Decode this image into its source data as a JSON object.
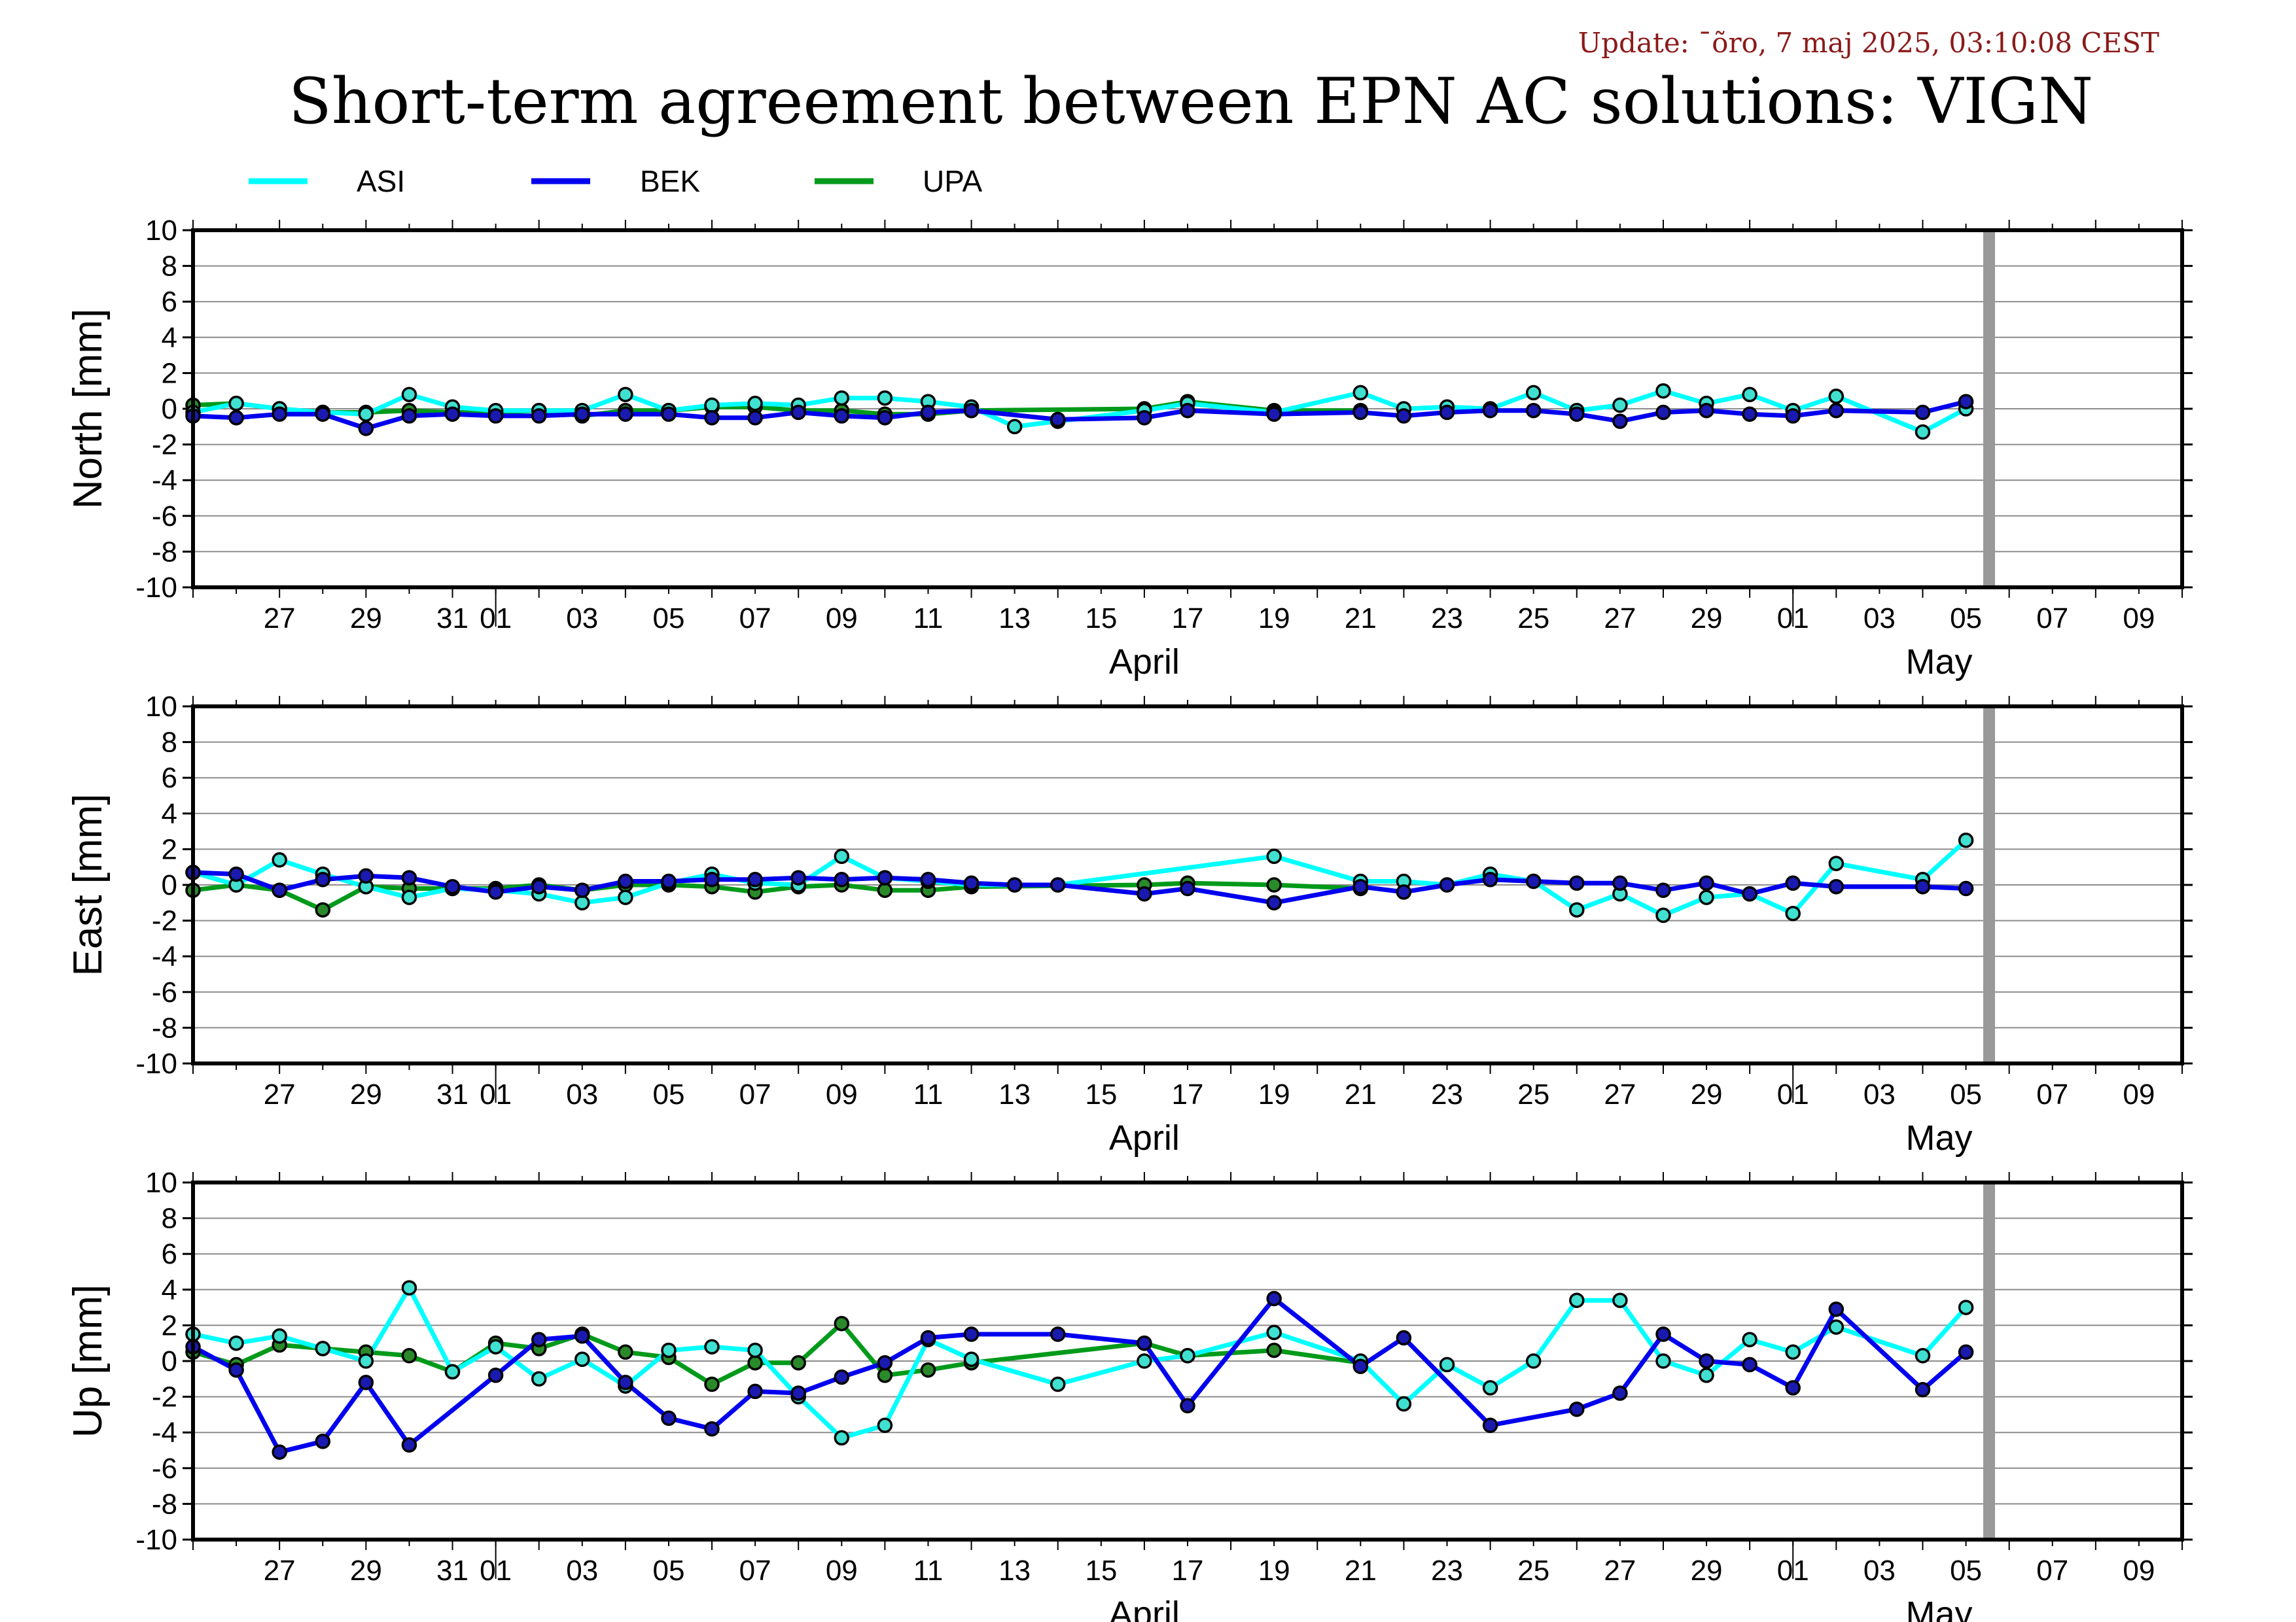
{
  "update": "Update: ¯õro, 7 maj 2025, 03:10:08 CEST",
  "title": "Short-term agreement between EPN AC solutions: VIGN",
  "legend": [
    {
      "name": "ASI",
      "color": "#00ffff"
    },
    {
      "name": "BEK",
      "color": "#0000ee"
    },
    {
      "name": "UPA",
      "color": "#009a1a"
    }
  ],
  "colors": {
    "ASI": "#00ffff",
    "BEK": "#0000ee",
    "UPA": "#009a1a",
    "marker_fill": "#40e0d0",
    "gap_bar": "#999999"
  },
  "x_axis": {
    "day_ticks": [
      "27",
      "29",
      "31",
      "01",
      "03",
      "05",
      "07",
      "09",
      "11",
      "13",
      "15",
      "17",
      "19",
      "21",
      "23",
      "25",
      "27",
      "29",
      "01",
      "03",
      "05",
      "07",
      "09"
    ],
    "month_labels": [
      "April",
      "May"
    ]
  },
  "chart_data": [
    {
      "type": "line",
      "panel": "north",
      "ylabel": "North [mm]",
      "ylim": [
        -10,
        10
      ],
      "yticks": [
        10,
        8,
        6,
        4,
        2,
        0,
        -2,
        -4,
        -6,
        -8,
        -10
      ],
      "xlim": [
        "2025-03-25",
        "2025-05-10"
      ],
      "grid": true,
      "series": [
        {
          "name": "ASI",
          "x": [
            "2025-03-25",
            "2025-03-26",
            "2025-03-27",
            "2025-03-28",
            "2025-03-29",
            "2025-03-30",
            "2025-03-31",
            "2025-04-01",
            "2025-04-02",
            "2025-04-03",
            "2025-04-04",
            "2025-04-05",
            "2025-04-06",
            "2025-04-07",
            "2025-04-08",
            "2025-04-09",
            "2025-04-10",
            "2025-04-11",
            "2025-04-12",
            "2025-04-13",
            "2025-04-14",
            "2025-04-16",
            "2025-04-17",
            "2025-04-19",
            "2025-04-21",
            "2025-04-22",
            "2025-04-23",
            "2025-04-24",
            "2025-04-25",
            "2025-04-26",
            "2025-04-27",
            "2025-04-28",
            "2025-04-29",
            "2025-04-30",
            "2025-05-01",
            "2025-05-02",
            "2025-05-04",
            "2025-05-05"
          ],
          "y": [
            -0.2,
            0.3,
            0.0,
            -0.2,
            -0.3,
            0.8,
            0.1,
            -0.1,
            -0.1,
            -0.1,
            0.8,
            -0.1,
            0.2,
            0.3,
            0.2,
            0.6,
            0.6,
            0.4,
            0.1,
            -1.0,
            -0.7,
            -0.1,
            0.3,
            -0.2,
            0.9,
            0.0,
            0.1,
            0.0,
            0.9,
            -0.1,
            0.2,
            1.0,
            0.3,
            0.8,
            -0.1,
            0.7,
            -1.3,
            0
          ]
        },
        {
          "name": "BEK",
          "x": [
            "2025-03-25",
            "2025-03-26",
            "2025-03-27",
            "2025-03-28",
            "2025-03-29",
            "2025-03-30",
            "2025-03-31",
            "2025-04-01",
            "2025-04-02",
            "2025-04-03",
            "2025-04-04",
            "2025-04-05",
            "2025-04-06",
            "2025-04-07",
            "2025-04-08",
            "2025-04-09",
            "2025-04-10",
            "2025-04-11",
            "2025-04-12",
            "2025-04-14",
            "2025-04-16",
            "2025-04-17",
            "2025-04-19",
            "2025-04-21",
            "2025-04-22",
            "2025-04-23",
            "2025-04-24",
            "2025-04-25",
            "2025-04-26",
            "2025-04-27",
            "2025-04-28",
            "2025-04-29",
            "2025-04-30",
            "2025-05-01",
            "2025-05-02",
            "2025-05-04",
            "2025-05-05"
          ],
          "y": [
            -0.4,
            -0.5,
            -0.3,
            -0.3,
            -1.1,
            -0.4,
            -0.3,
            -0.4,
            -0.4,
            -0.3,
            -0.3,
            -0.3,
            -0.5,
            -0.5,
            -0.2,
            -0.4,
            -0.5,
            -0.2,
            -0.1,
            -0.6,
            -0.5,
            -0.1,
            -0.3,
            -0.2,
            -0.4,
            -0.2,
            -0.1,
            -0.1,
            -0.3,
            -0.7,
            -0.2,
            -0.1,
            -0.3,
            -0.4,
            -0.1,
            -0.2,
            0.4
          ]
        },
        {
          "name": "UPA",
          "x": [
            "2025-03-25",
            "2025-03-26",
            "2025-03-27",
            "2025-03-28",
            "2025-03-29",
            "2025-03-30",
            "2025-03-31",
            "2025-04-01",
            "2025-04-02",
            "2025-04-03",
            "2025-04-04",
            "2025-04-05",
            "2025-04-06",
            "2025-04-07",
            "2025-04-08",
            "2025-04-09",
            "2025-04-10",
            "2025-04-11",
            "2025-04-12",
            "2025-04-16",
            "2025-04-17",
            "2025-04-19",
            "2025-04-21"
          ],
          "y": [
            0.2,
            0.3,
            0.0,
            -0.2,
            -0.2,
            -0.1,
            -0.2,
            -0.2,
            -0.1,
            -0.4,
            -0.1,
            -0.1,
            0.1,
            0.1,
            -0.1,
            -0.1,
            -0.3,
            -0.3,
            -0.1,
            0.0,
            0.4,
            -0.1,
            -0.1
          ]
        }
      ]
    },
    {
      "type": "line",
      "panel": "east",
      "ylabel": "East [mm]",
      "ylim": [
        -10,
        10
      ],
      "yticks": [
        10,
        8,
        6,
        4,
        2,
        0,
        -2,
        -4,
        -6,
        -8,
        -10
      ],
      "xlim": [
        "2025-03-25",
        "2025-05-10"
      ],
      "grid": true,
      "series": [
        {
          "name": "ASI",
          "x": [
            "2025-03-25",
            "2025-03-26",
            "2025-03-27",
            "2025-03-28",
            "2025-03-29",
            "2025-03-30",
            "2025-03-31",
            "2025-04-01",
            "2025-04-02",
            "2025-04-03",
            "2025-04-04",
            "2025-04-05",
            "2025-04-06",
            "2025-04-07",
            "2025-04-08",
            "2025-04-09",
            "2025-04-10",
            "2025-04-11",
            "2025-04-12",
            "2025-04-13",
            "2025-04-14",
            "2025-04-19",
            "2025-04-21",
            "2025-04-22",
            "2025-04-23",
            "2025-04-24",
            "2025-04-25",
            "2025-04-26",
            "2025-04-27",
            "2025-04-28",
            "2025-04-29",
            "2025-04-30",
            "2025-05-01",
            "2025-05-02",
            "2025-05-04",
            "2025-05-05"
          ],
          "y": [
            0.7,
            0.0,
            1.4,
            0.6,
            -0.1,
            -0.7,
            -0.2,
            -0.3,
            -0.5,
            -1.0,
            -0.7,
            0.1,
            0.6,
            0.1,
            0.0,
            1.6,
            0.4,
            0.2,
            0.0,
            0.0,
            0.0,
            1.6,
            0.2,
            0.2,
            0.0,
            0.6,
            0.2,
            -1.4,
            -0.5,
            -1.7,
            -0.7,
            -0.5,
            -1.6,
            1.2,
            0.3,
            2.5
          ]
        },
        {
          "name": "BEK",
          "x": [
            "2025-03-25",
            "2025-03-26",
            "2025-03-27",
            "2025-03-28",
            "2025-03-29",
            "2025-03-30",
            "2025-03-31",
            "2025-04-01",
            "2025-04-02",
            "2025-04-03",
            "2025-04-04",
            "2025-04-05",
            "2025-04-06",
            "2025-04-07",
            "2025-04-08",
            "2025-04-09",
            "2025-04-10",
            "2025-04-11",
            "2025-04-12",
            "2025-04-13",
            "2025-04-14",
            "2025-04-16",
            "2025-04-17",
            "2025-04-19",
            "2025-04-21",
            "2025-04-22",
            "2025-04-23",
            "2025-04-24",
            "2025-04-25",
            "2025-04-26",
            "2025-04-27",
            "2025-04-28",
            "2025-04-29",
            "2025-04-30",
            "2025-05-01",
            "2025-05-02",
            "2025-05-04",
            "2025-05-05"
          ],
          "y": [
            0.7,
            0.6,
            -0.3,
            0.3,
            0.5,
            0.4,
            -0.1,
            -0.4,
            -0.1,
            -0.3,
            0.2,
            0.2,
            0.3,
            0.3,
            0.4,
            0.3,
            0.4,
            0.3,
            0.1,
            0.0,
            0.0,
            -0.5,
            -0.2,
            -1.0,
            -0.1,
            -0.4,
            0.0,
            0.3,
            0.2,
            0.1,
            0.1,
            -0.3,
            0.1,
            -0.5,
            0.1,
            -0.1,
            -0.1,
            -0.2
          ]
        },
        {
          "name": "UPA",
          "x": [
            "2025-03-25",
            "2025-03-26",
            "2025-03-27",
            "2025-03-28",
            "2025-03-29",
            "2025-03-30",
            "2025-03-31",
            "2025-04-01",
            "2025-04-02",
            "2025-04-03",
            "2025-04-04",
            "2025-04-05",
            "2025-04-06",
            "2025-04-07",
            "2025-04-08",
            "2025-04-09",
            "2025-04-10",
            "2025-04-11",
            "2025-04-12",
            "2025-04-16",
            "2025-04-17",
            "2025-04-19",
            "2025-04-21"
          ],
          "y": [
            -0.3,
            0.0,
            -0.3,
            -1.4,
            -0.1,
            -0.2,
            -0.2,
            -0.2,
            0.0,
            -0.3,
            0.0,
            0.0,
            -0.1,
            -0.4,
            -0.1,
            0.0,
            -0.3,
            -0.3,
            -0.1,
            0.0,
            0.1,
            0.0,
            -0.2
          ]
        }
      ]
    },
    {
      "type": "line",
      "panel": "up",
      "ylabel": "Up [mm]",
      "ylim": [
        -10,
        10
      ],
      "yticks": [
        10,
        8,
        6,
        4,
        2,
        0,
        -2,
        -4,
        -6,
        -8,
        -10
      ],
      "xlim": [
        "2025-03-25",
        "2025-05-10"
      ],
      "grid": true,
      "series": [
        {
          "name": "ASI",
          "x": [
            "2025-03-25",
            "2025-03-26",
            "2025-03-27",
            "2025-03-28",
            "2025-03-29",
            "2025-03-30",
            "2025-03-31",
            "2025-04-01",
            "2025-04-02",
            "2025-04-03",
            "2025-04-04",
            "2025-04-05",
            "2025-04-06",
            "2025-04-07",
            "2025-04-08",
            "2025-04-09",
            "2025-04-10",
            "2025-04-11",
            "2025-04-12",
            "2025-04-14",
            "2025-04-16",
            "2025-04-17",
            "2025-04-19",
            "2025-04-21",
            "2025-04-22",
            "2025-04-23",
            "2025-04-24",
            "2025-04-25",
            "2025-04-26",
            "2025-04-27",
            "2025-04-28",
            "2025-04-29",
            "2025-04-30",
            "2025-05-01",
            "2025-05-02",
            "2025-05-04",
            "2025-05-05"
          ],
          "y": [
            1.5,
            1.0,
            1.4,
            0.7,
            0.0,
            4.1,
            -0.6,
            0.8,
            -1.0,
            0.1,
            -1.4,
            0.6,
            0.8,
            0.6,
            -2.0,
            -4.3,
            -3.6,
            1.2,
            0.1,
            -1.3,
            0.0,
            0.3,
            1.6,
            0.0,
            -2.4,
            -0.2,
            -1.5,
            0.0,
            3.4,
            3.4,
            0.0,
            -0.8,
            1.2,
            0.5,
            1.9,
            0.3,
            3.0
          ]
        },
        {
          "name": "BEK",
          "x": [
            "2025-03-25",
            "2025-03-26",
            "2025-03-27",
            "2025-03-28",
            "2025-03-29",
            "2025-03-30",
            "2025-04-01",
            "2025-04-02",
            "2025-04-03",
            "2025-04-04",
            "2025-04-05",
            "2025-04-06",
            "2025-04-07",
            "2025-04-08",
            "2025-04-09",
            "2025-04-10",
            "2025-04-11",
            "2025-04-12",
            "2025-04-14",
            "2025-04-16",
            "2025-04-17",
            "2025-04-19",
            "2025-04-21",
            "2025-04-22",
            "2025-04-24",
            "2025-04-26",
            "2025-04-27",
            "2025-04-28",
            "2025-04-29",
            "2025-04-30",
            "2025-05-01",
            "2025-05-02",
            "2025-05-04",
            "2025-05-05"
          ],
          "y": [
            0.8,
            -0.5,
            -5.1,
            -4.5,
            -1.2,
            -4.7,
            -0.8,
            1.2,
            1.4,
            -1.2,
            -3.2,
            -3.8,
            -1.7,
            -1.8,
            -0.9,
            -0.1,
            1.3,
            1.5,
            1.5,
            1.0,
            -2.5,
            3.5,
            -0.3,
            1.3,
            -3.6,
            -2.7,
            -1.8,
            1.5,
            0.0,
            -0.2,
            -1.5,
            2.9,
            -1.6,
            0.5
          ]
        },
        {
          "name": "UPA",
          "x": [
            "2025-03-25",
            "2025-03-26",
            "2025-03-27",
            "2025-03-28",
            "2025-03-29",
            "2025-03-30",
            "2025-03-31",
            "2025-04-01",
            "2025-04-02",
            "2025-04-03",
            "2025-04-04",
            "2025-04-05",
            "2025-04-06",
            "2025-04-07",
            "2025-04-08",
            "2025-04-09",
            "2025-04-10",
            "2025-04-11",
            "2025-04-12",
            "2025-04-16",
            "2025-04-17",
            "2025-04-19",
            "2025-04-21"
          ],
          "y": [
            0.5,
            -0.2,
            0.9,
            0.7,
            0.5,
            0.3,
            -0.6,
            1.0,
            0.7,
            1.5,
            0.5,
            0.2,
            -1.3,
            -0.1,
            -0.1,
            2.1,
            -0.8,
            -0.5,
            -0.1,
            1.0,
            0.3,
            0.6,
            -0.1
          ]
        }
      ]
    }
  ]
}
